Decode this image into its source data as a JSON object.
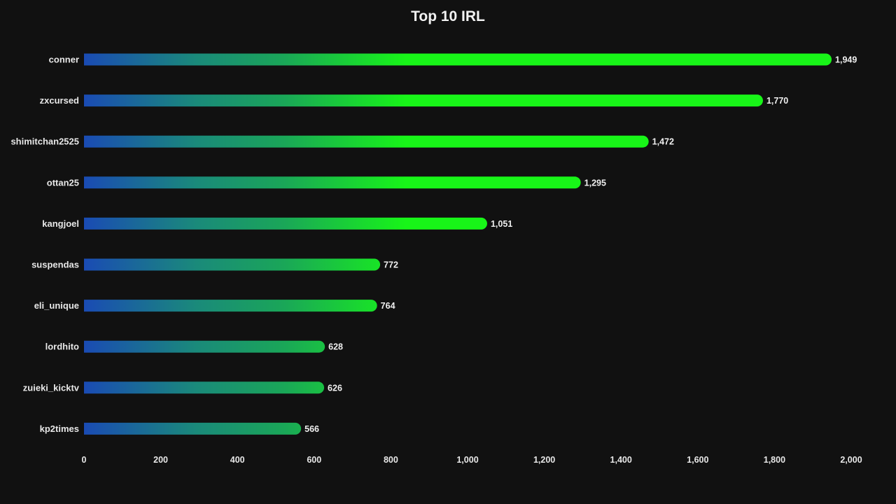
{
  "chart_data": {
    "type": "bar",
    "orientation": "horizontal",
    "title": "Top 10 IRL",
    "xlabel": "",
    "ylabel": "",
    "categories": [
      "conner",
      "zxcursed",
      "shimitchan2525",
      "ottan25",
      "kangjoel",
      "suspendas",
      "eli_unique",
      "lordhito",
      "zuieki_kicktv",
      "kp2times"
    ],
    "values": [
      1949,
      1770,
      1472,
      1295,
      1051,
      772,
      764,
      628,
      626,
      566
    ],
    "value_labels": [
      "1,949",
      "1,770",
      "1,472",
      "1,295",
      "1,051",
      "772",
      "764",
      "628",
      "626",
      "566"
    ],
    "xlim": [
      0,
      2000
    ],
    "ticks": [
      0,
      200,
      400,
      600,
      800,
      1000,
      1200,
      1400,
      1600,
      1800,
      2000
    ],
    "tick_labels": [
      "0",
      "200",
      "400",
      "600",
      "800",
      "1,000",
      "1,200",
      "1,400",
      "1,600",
      "1,800",
      "2,000"
    ],
    "grid": false,
    "colors": {
      "background": "#111111",
      "bar_start": "#1a4bb4",
      "bar_mid": "#1aa658",
      "bar_end": "#18f518",
      "text": "#e8e8e8"
    }
  }
}
